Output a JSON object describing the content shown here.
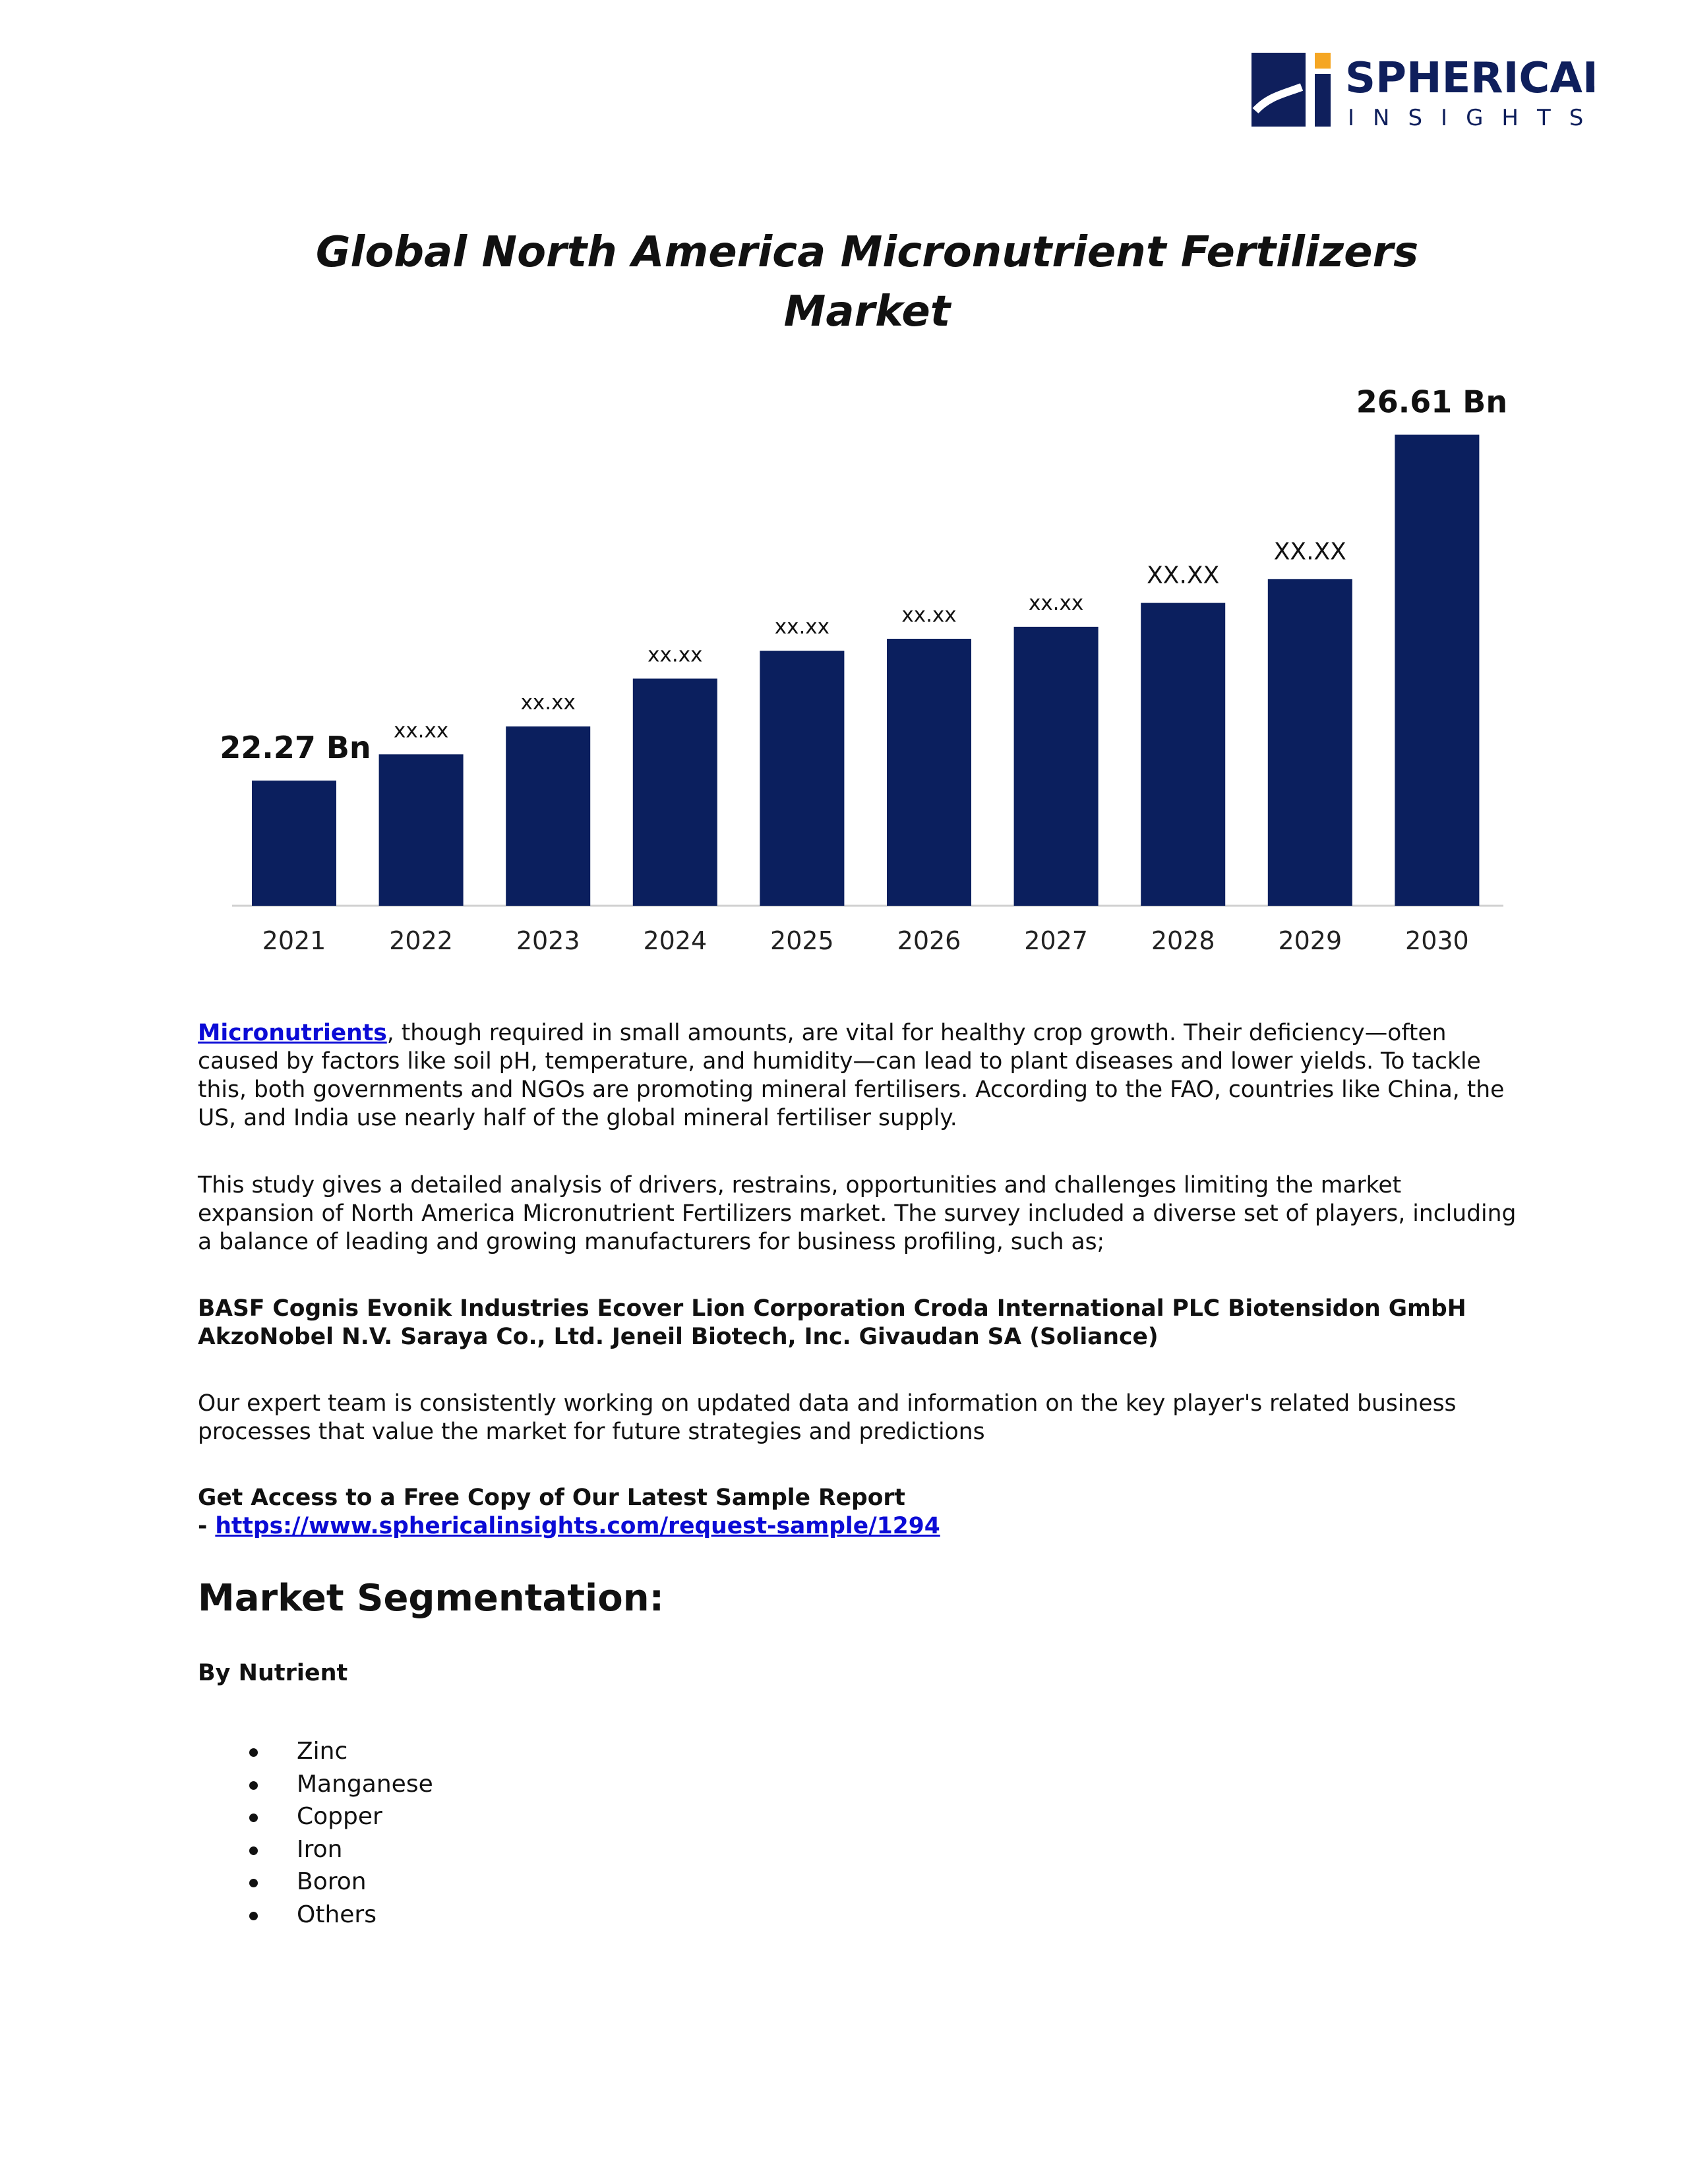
{
  "logo": {
    "name": "SPHERICAL",
    "sub": "INSIGHTS",
    "colors": {
      "navy": "#0f1f5c",
      "accent": "#f5a623"
    }
  },
  "chart_data": {
    "type": "bar",
    "title_lines": [
      "Global North America Micronutrient Fertilizers",
      "Market"
    ],
    "categories": [
      "2021",
      "2022",
      "2023",
      "2024",
      "2025",
      "2026",
      "2027",
      "2028",
      "2029",
      "2030"
    ],
    "values": [
      22.27,
      22.6,
      22.95,
      23.55,
      23.9,
      24.05,
      24.2,
      24.5,
      24.8,
      26.61
    ],
    "data_labels": [
      "22.27 Bn",
      "xx.xx",
      "xx.xx",
      "xx.xx",
      "xx.xx",
      "xx.xx",
      "xx.xx",
      "XX.XX",
      "XX.XX",
      "26.61 Bn"
    ],
    "bar_color": "#0b1f5e",
    "xlabel": "",
    "ylabel": "",
    "grid": false,
    "legend": "none"
  },
  "intro": {
    "link_text": "Micronutrients",
    "text": ", though required in small amounts, are vital for healthy crop growth. Their deficiency—often caused by factors like soil pH, temperature, and humidity—can lead to plant diseases and lower yields. To tackle this, both governments and NGOs are promoting mineral fertilisers. According to the FAO, countries like China, the US, and India use nearly half of the global mineral fertiliser supply."
  },
  "study_paragraph": "This study gives a detailed analysis of drivers, restrains, opportunities and challenges limiting the market expansion of North America Micronutrient Fertilizers market. The survey included a diverse set of players, including a balance of leading and growing manufacturers for business profiling, such as;",
  "players": "BASF Cognis Evonik Industries Ecover Lion Corporation Croda International PLC Biotensidon GmbH AkzoNobel N.V. Saraya Co., Ltd. Jeneil Biotech, Inc. Givaudan SA (Soliance)",
  "expert_paragraph": "Our expert team is consistently working on updated data and information on the key player's related business processes that value the market for future strategies and predictions",
  "sample": {
    "heading": "Get Access to a Free Copy of Our Latest Sample Report",
    "dash": "- ",
    "url": "https://www.sphericalinsights.com/request-sample/1294"
  },
  "segmentation": {
    "title": "Market Segmentation:",
    "subtitle": "By Nutrient",
    "items": [
      "Zinc",
      "Manganese",
      "Copper",
      "Iron",
      "Boron",
      "Others"
    ]
  }
}
